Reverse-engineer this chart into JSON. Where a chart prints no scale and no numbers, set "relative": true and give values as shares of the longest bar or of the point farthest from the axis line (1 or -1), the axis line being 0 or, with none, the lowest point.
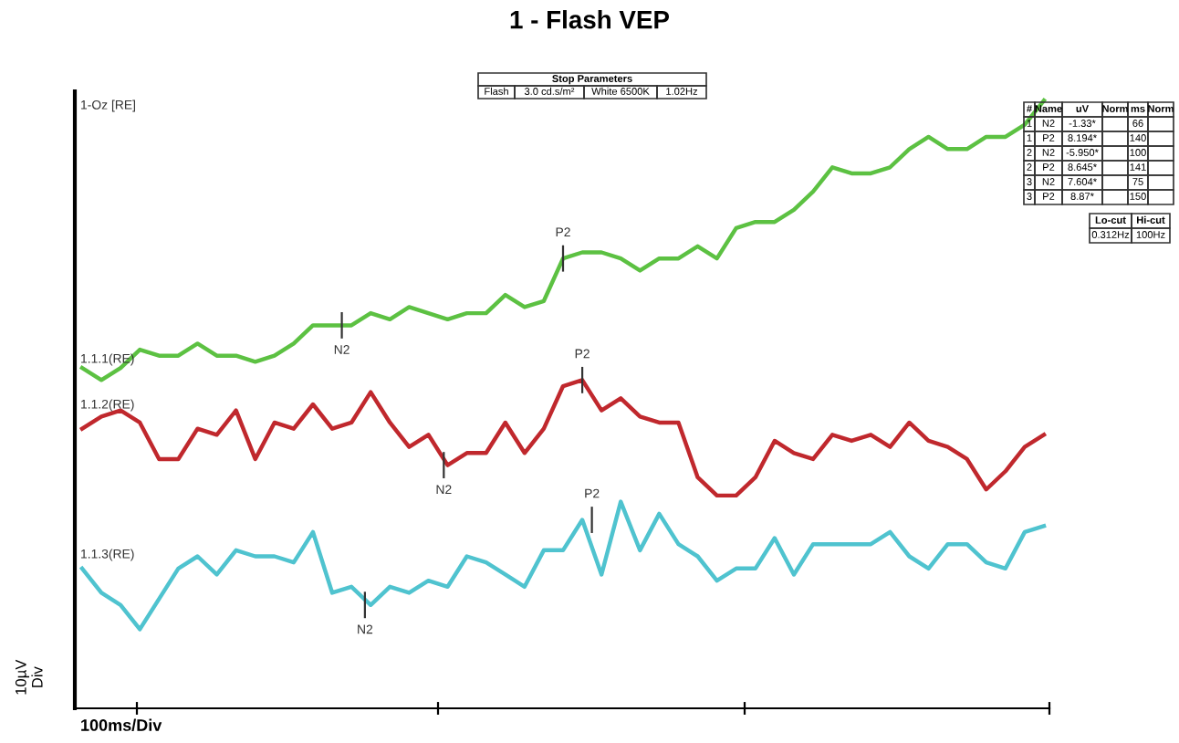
{
  "chart_data": {
    "type": "line",
    "title": "1 - Flash VEP",
    "ylabel": "10µV\nDiv",
    "relative": true,
    "legend": false,
    "grid": false,
    "marker": "none",
    "line_style": "solid",
    "categories": [
      null,
      null,
      null,
      null,
      null,
      null,
      null,
      null,
      null,
      null,
      null,
      null,
      null,
      null,
      null,
      null,
      null,
      null,
      null,
      null,
      null,
      null,
      null,
      null,
      null,
      null,
      null,
      null,
      null,
      null,
      null,
      null,
      null,
      null,
      null,
      null,
      null,
      null,
      null,
      null,
      null,
      null,
      null,
      null,
      null,
      null,
      null,
      null,
      null,
      null,
      null
    ],
    "series": [
      {
        "color": "#5cc142",
        "values": [
          0.56,
          0.54,
          0.56,
          0.59,
          0.58,
          0.58,
          0.6,
          0.58,
          0.58,
          0.57,
          0.58,
          0.6,
          0.63,
          0.63,
          0.63,
          0.65,
          0.64,
          0.66,
          0.65,
          0.64,
          0.65,
          0.65,
          0.68,
          0.66,
          0.67,
          0.74,
          0.75,
          0.75,
          0.74,
          0.72,
          0.74,
          0.74,
          0.76,
          0.74,
          0.79,
          0.8,
          0.8,
          0.82,
          0.85,
          0.89,
          0.88,
          0.88,
          0.89,
          0.92,
          0.94,
          0.92,
          0.92,
          0.94,
          0.94,
          0.96,
          1
        ]
      },
      {
        "color": "#c0282d",
        "values": [
          0.46,
          0.48,
          0.49,
          0.47,
          0.41,
          0.41,
          0.46,
          0.45,
          0.49,
          0.41,
          0.47,
          0.46,
          0.5,
          0.46,
          0.47,
          0.52,
          0.47,
          0.43,
          0.45,
          0.4,
          0.42,
          0.42,
          0.47,
          0.42,
          0.46,
          0.53,
          0.54,
          0.49,
          0.51,
          0.48,
          0.47,
          0.47,
          0.38,
          0.35,
          0.35,
          0.38,
          0.44,
          0.42,
          0.41,
          0.45,
          0.44,
          0.45,
          0.43,
          0.47,
          0.44,
          0.43,
          0.41,
          0.36,
          0.39,
          0.43,
          0.45
        ]
      },
      {
        "color": "#4fc3cf",
        "values": [
          0.23,
          0.19,
          0.17,
          0.13,
          0.18,
          0.23,
          0.25,
          0.22,
          0.26,
          0.25,
          0.25,
          0.24,
          0.29,
          0.19,
          0.2,
          0.17,
          0.2,
          0.19,
          0.21,
          0.2,
          0.25,
          0.24,
          0.22,
          0.2,
          0.26,
          0.26,
          0.31,
          0.22,
          0.34,
          0.26,
          0.32,
          0.27,
          0.25,
          0.21,
          0.23,
          0.23,
          0.28,
          0.22,
          0.27,
          0.27,
          0.27,
          0.27,
          0.29,
          0.25,
          0.23,
          0.27,
          0.27,
          0.24,
          0.23,
          0.29,
          0.3
        ]
      }
    ],
    "annotations": [
      "1-Oz [RE]",
      "1.1.1(RE)",
      "1.1.2(RE)",
      "1.1.3(RE)",
      "N2",
      "P2",
      "N2",
      "P2",
      "N2",
      "P2",
      "100ms/Div",
      "Stop Parameters",
      "Flash",
      "3.0 cd.s/m²",
      "White 6500K",
      "1.02Hz",
      "#",
      "Name",
      "uV",
      "Norm",
      "ms",
      "Norm",
      "1",
      "N2",
      "-1.33*",
      "66",
      "1",
      "P2",
      "8.194*",
      "140",
      "2",
      "N2",
      "-5.950*",
      "100",
      "2",
      "P2",
      "8.645*",
      "141",
      "3",
      "N2",
      "7.604*",
      "75",
      "3",
      "P2",
      "8.87*",
      "150",
      "Lo-cut",
      "Hi-cut",
      "0.312Hz",
      "100Hz"
    ]
  }
}
